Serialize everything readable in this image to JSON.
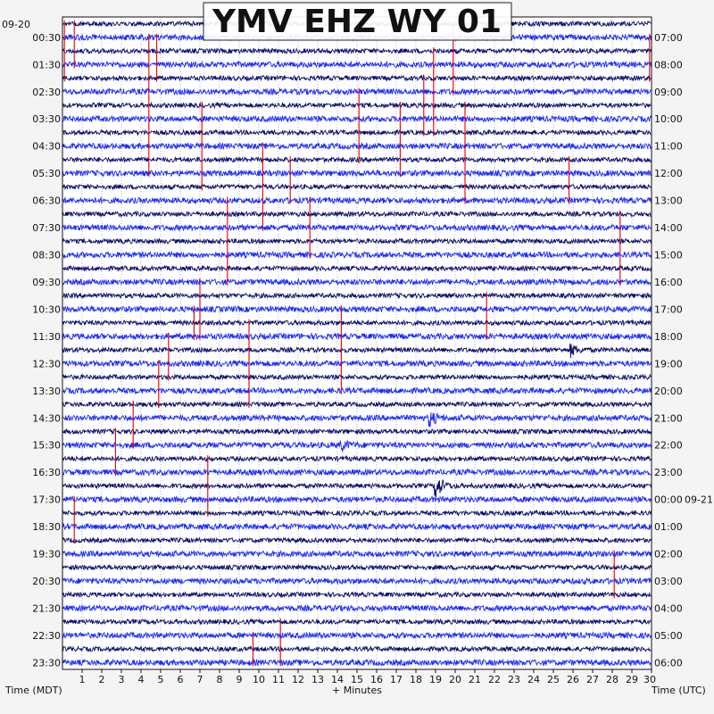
{
  "chart_data": {
    "type": "line",
    "title": "YMV EHZ WY 01",
    "xlabel": "+ Minutes",
    "ylabel_left": "Time (MDT)",
    "ylabel_right": "Time (UTC)",
    "date_left": "09-20",
    "date_right_change": "09-21",
    "x_range": [
      0,
      30
    ],
    "x_ticks": [
      "1",
      "2",
      "3",
      "4",
      "5",
      "6",
      "7",
      "8",
      "9",
      "10",
      "11",
      "12",
      "13",
      "14",
      "15",
      "16",
      "17",
      "18",
      "19",
      "20",
      "21",
      "22",
      "23",
      "24",
      "25",
      "26",
      "27",
      "28",
      "29",
      "30"
    ],
    "rows": 48,
    "row_minutes": 30,
    "left_labels": [
      "00:30",
      "01:30",
      "02:30",
      "03:30",
      "04:30",
      "05:30",
      "06:30",
      "07:30",
      "08:30",
      "09:30",
      "10:30",
      "11:30",
      "12:30",
      "13:30",
      "14:30",
      "15:30",
      "16:30",
      "17:30",
      "18:30",
      "19:30",
      "20:30",
      "21:30",
      "22:30",
      "23:30"
    ],
    "right_labels": [
      "07:00",
      "08:00",
      "09:00",
      "10:00",
      "11:00",
      "12:00",
      "13:00",
      "14:00",
      "15:00",
      "16:00",
      "17:00",
      "18:00",
      "19:00",
      "20:00",
      "21:00",
      "22:00",
      "23:00",
      "00:00",
      "01:00",
      "02:00",
      "03:00",
      "04:00",
      "05:00",
      "06:00"
    ],
    "trace_colors": [
      "#0a0f6e",
      "#1a2bff"
    ],
    "pick_color": "#e00000",
    "events": [
      {
        "row": 34,
        "minute": 19.0,
        "amplitude": 2.6
      },
      {
        "row": 29,
        "minute": 18.7,
        "amplitude": 1.4
      },
      {
        "row": 24,
        "minute": 25.9,
        "amplitude": 1.1
      },
      {
        "row": 31,
        "minute": 14.2,
        "amplitude": 1.0
      }
    ],
    "picks": [
      {
        "minute": 0.1,
        "rows": [
          0,
          4
        ]
      },
      {
        "minute": 0.6,
        "rows": [
          0,
          3
        ]
      },
      {
        "minute": 4.4,
        "rows": [
          1,
          11
        ]
      },
      {
        "minute": 4.8,
        "rows": [
          1,
          4
        ]
      },
      {
        "minute": 7.1,
        "rows": [
          6,
          12
        ]
      },
      {
        "minute": 8.4,
        "rows": [
          13,
          19
        ]
      },
      {
        "minute": 10.2,
        "rows": [
          9,
          15
        ]
      },
      {
        "minute": 11.6,
        "rows": [
          10,
          13
        ]
      },
      {
        "minute": 12.6,
        "rows": [
          13,
          17
        ]
      },
      {
        "minute": 15.1,
        "rows": [
          5,
          10
        ]
      },
      {
        "minute": 17.2,
        "rows": [
          6,
          11
        ]
      },
      {
        "minute": 18.4,
        "rows": [
          4,
          8
        ]
      },
      {
        "minute": 18.9,
        "rows": [
          2,
          8
        ]
      },
      {
        "minute": 19.9,
        "rows": [
          0,
          5
        ]
      },
      {
        "minute": 20.5,
        "rows": [
          6,
          13
        ]
      },
      {
        "minute": 25.8,
        "rows": [
          10,
          13
        ]
      },
      {
        "minute": 28.4,
        "rows": [
          14,
          19
        ]
      },
      {
        "minute": 29.9,
        "rows": [
          1,
          4
        ]
      },
      {
        "minute": 7.0,
        "rows": [
          19,
          23
        ]
      },
      {
        "minute": 6.7,
        "rows": [
          21,
          23
        ]
      },
      {
        "minute": 14.2,
        "rows": [
          21,
          27
        ]
      },
      {
        "minute": 21.6,
        "rows": [
          20,
          23
        ]
      },
      {
        "minute": 5.4,
        "rows": [
          23,
          26
        ]
      },
      {
        "minute": 9.5,
        "rows": [
          22,
          28
        ]
      },
      {
        "minute": 4.9,
        "rows": [
          25,
          28
        ]
      },
      {
        "minute": 3.6,
        "rows": [
          28,
          31
        ]
      },
      {
        "minute": 2.7,
        "rows": [
          30,
          33
        ]
      },
      {
        "minute": 7.4,
        "rows": [
          32,
          36
        ]
      },
      {
        "minute": 0.6,
        "rows": [
          35,
          38
        ]
      },
      {
        "minute": 28.1,
        "rows": [
          39,
          42
        ]
      },
      {
        "minute": 9.7,
        "rows": [
          45,
          47
        ]
      },
      {
        "minute": 11.1,
        "rows": [
          44,
          47
        ]
      }
    ]
  }
}
